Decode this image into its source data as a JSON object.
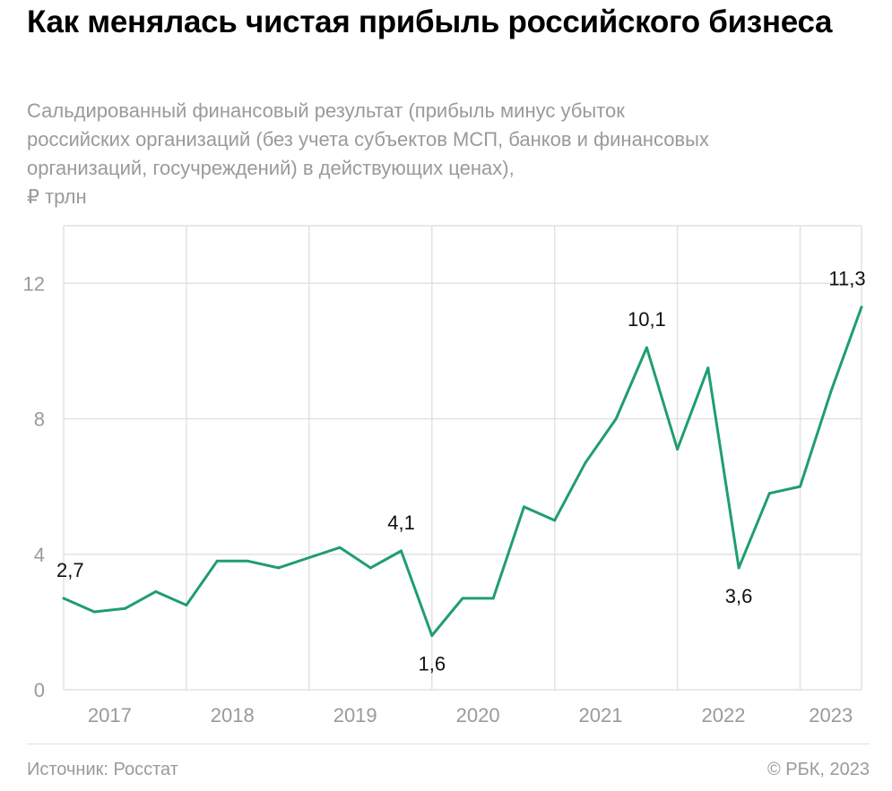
{
  "title": "Как менялась чистая прибыль российского бизнеса",
  "subtitle_lines": [
    "Сальдированный финансовый результат (прибыль минус убыток",
    "российских организаций (без учета субъектов МСП, банков и финансовых",
    "организаций, госучреждений) в действующих ценах),",
    "₽ трлн"
  ],
  "source": "Источник: Росстат",
  "copyright": "© РБК, 2023",
  "colors": {
    "line": "#1f9e6e",
    "grid": "#e2e2e2",
    "axis_text": "#9a9a9a"
  },
  "chart_data": {
    "type": "line",
    "title": "Как менялась чистая прибыль российского бизнеса",
    "ylabel": "₽ трлн",
    "ylim": [
      0,
      13.7
    ],
    "yticks": [
      0,
      4,
      8,
      12
    ],
    "ytick_labels": [
      "0",
      "4",
      "8",
      "12"
    ],
    "grid": true,
    "x": [
      "2017 Q1",
      "2017 Q2",
      "2017 Q3",
      "2017 Q4",
      "2018 Q1",
      "2018 Q2",
      "2018 Q3",
      "2018 Q4",
      "2019 Q1",
      "2019 Q2",
      "2019 Q3",
      "2019 Q4",
      "2020 Q1",
      "2020 Q2",
      "2020 Q3",
      "2020 Q4",
      "2021 Q1",
      "2021 Q2",
      "2021 Q3",
      "2021 Q4",
      "2022 Q1",
      "2022 Q2",
      "2022 Q3",
      "2022 Q4",
      "2023 Q1",
      "2023 Q2",
      "2023 Q3"
    ],
    "year_labels": [
      "2017",
      "2018",
      "2019",
      "2020",
      "2021",
      "2022",
      "2023"
    ],
    "series": [
      {
        "name": "Сальдированный финансовый результат",
        "values": [
          2.7,
          2.3,
          2.4,
          2.9,
          2.5,
          3.8,
          3.8,
          3.6,
          3.9,
          4.2,
          3.6,
          4.1,
          1.6,
          2.7,
          2.7,
          5.4,
          5.0,
          6.7,
          8.0,
          10.1,
          7.1,
          9.5,
          3.6,
          5.8,
          6.0,
          8.8,
          11.3
        ]
      }
    ],
    "annotations": [
      {
        "index": 0,
        "text": "2,7",
        "pos": "above"
      },
      {
        "index": 11,
        "text": "4,1",
        "pos": "above"
      },
      {
        "index": 12,
        "text": "1,6",
        "pos": "below"
      },
      {
        "index": 19,
        "text": "10,1",
        "pos": "above"
      },
      {
        "index": 22,
        "text": "3,6",
        "pos": "below"
      },
      {
        "index": 26,
        "text": "11,3",
        "pos": "above"
      }
    ]
  }
}
